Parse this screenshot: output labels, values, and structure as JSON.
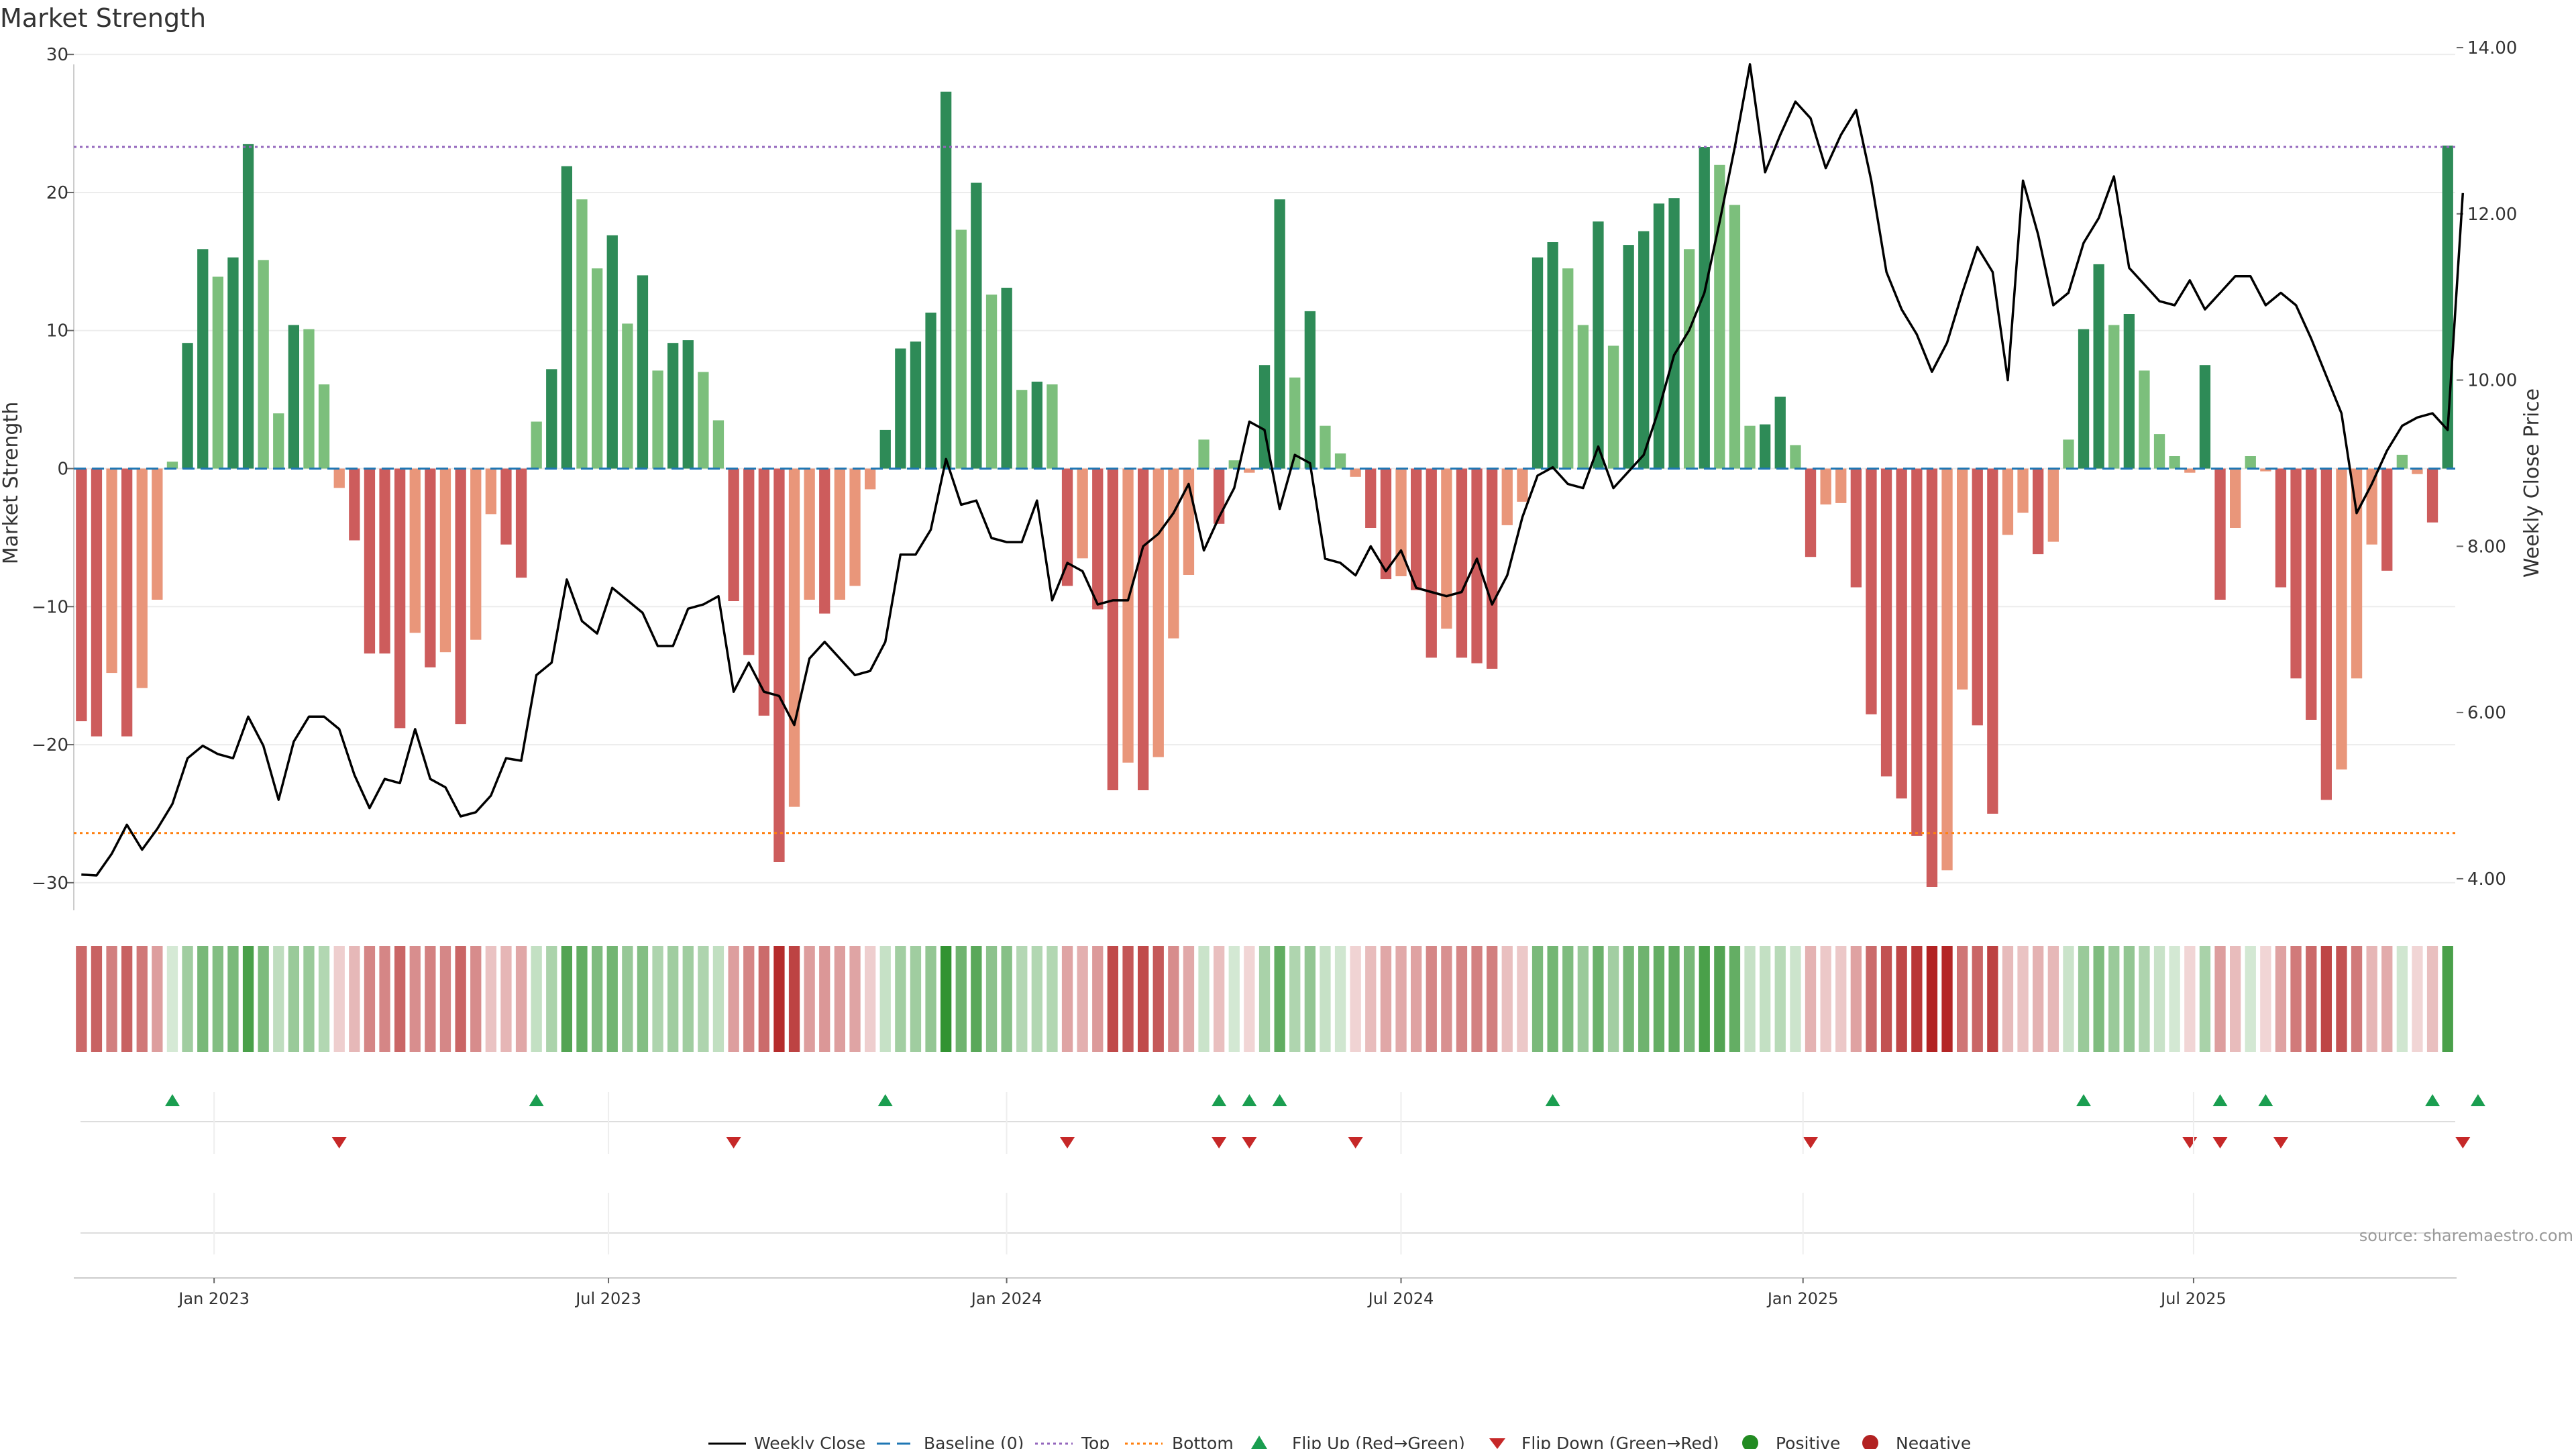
{
  "chart_data": {
    "type": "bar",
    "title": "Market Strength",
    "source": "source: sharemaestro.com",
    "ylabel_left": "Market Strength",
    "ylabel_right": "Weekly Close Price",
    "ylim_left": [
      -32,
      32
    ],
    "yticks_left": [
      {
        "v": 30,
        "label": "30"
      },
      {
        "v": 20,
        "label": "20"
      },
      {
        "v": 10,
        "label": "10"
      },
      {
        "v": 0,
        "label": "0"
      },
      {
        "v": -10,
        "label": "−10"
      },
      {
        "v": -20,
        "label": "−20"
      },
      {
        "v": -30,
        "label": "−30"
      }
    ],
    "ylim_right": [
      3.62,
      14.25
    ],
    "yticks_right": [
      {
        "v": 14,
        "label": "14.00"
      },
      {
        "v": 12,
        "label": "12.00"
      },
      {
        "v": 10,
        "label": "10.00"
      },
      {
        "v": 8,
        "label": "8.00"
      },
      {
        "v": 6,
        "label": "6.00"
      },
      {
        "v": 4,
        "label": "4.00"
      }
    ],
    "x_ticks": [
      {
        "i": 8.75,
        "label": "Jan 2023"
      },
      {
        "i": 34.75,
        "label": "Jul 2023"
      },
      {
        "i": 61,
        "label": "Jan 2024"
      },
      {
        "i": 87,
        "label": "Jul 2024"
      },
      {
        "i": 113.5,
        "label": "Jan 2025"
      },
      {
        "i": 139.25,
        "label": "Jul 2025"
      }
    ],
    "top_line": 23.3,
    "bottom_line": -26.4,
    "colors": {
      "strong_green": "#2e8b57",
      "light_green": "#7cbf7c",
      "strong_red": "#cd5c5c",
      "light_red": "#e9967a",
      "close_line": "#000000",
      "baseline": "#1f77b4",
      "top": "#9467bd",
      "bottom": "#ff7f0e",
      "flip_up": "#1a9e50",
      "flip_down": "#c62828",
      "positive": "#228b22",
      "negative": "#b22222"
    },
    "series": [
      {
        "name": "Market Strength",
        "values": [
          -18.3,
          -19.4,
          -14.8,
          -19.4,
          -15.9,
          -9.5,
          0.5,
          9.1,
          15.9,
          13.9,
          15.3,
          23.5,
          15.1,
          4,
          10.4,
          10.1,
          6.1,
          -1.4,
          -5.2,
          -13.4,
          -13.4,
          -18.8,
          -11.9,
          -14.4,
          -13.3,
          -18.5,
          -12.4,
          -3.3,
          -5.5,
          -7.9,
          3.4,
          7.2,
          21.9,
          19.5,
          14.5,
          16.9,
          10.5,
          14,
          7.1,
          9.1,
          9.3,
          7,
          3.5,
          -9.6,
          -13.5,
          -17.9,
          -28.5,
          -24.5,
          -9.5,
          -10.5,
          -9.5,
          -8.5,
          -1.5,
          2.8,
          8.7,
          9.2,
          11.3,
          27.3,
          17.3,
          20.7,
          12.6,
          13.1,
          5.7,
          6.3,
          6.1,
          -8.5,
          -6.5,
          -10.2,
          -23.3,
          -21.3,
          -23.3,
          -20.9,
          -12.3,
          -7.7,
          2.1,
          -4,
          0.6,
          -0.3,
          7.5,
          19.5,
          6.6,
          11.4,
          3.1,
          1.1,
          -0.6,
          -4.3,
          -8,
          -7.8,
          -8.8,
          -13.7,
          -11.6,
          -13.7,
          -14.1,
          -14.5,
          -4.1,
          -2.4,
          15.3,
          16.4,
          14.5,
          10.4,
          17.9,
          8.9,
          16.2,
          17.2,
          19.2,
          19.6,
          15.9,
          23.3,
          22,
          19.1,
          3.1,
          3.2,
          5.2,
          1.7,
          -6.4,
          -2.6,
          -2.5,
          -8.6,
          -17.8,
          -22.3,
          -23.9,
          -26.6,
          -30.3,
          -29.1,
          -16,
          -18.6,
          -25,
          -4.8,
          -3.2,
          -6.2,
          -5.3,
          2.1,
          10.1,
          14.8,
          10.4,
          11.2,
          7.1,
          2.5,
          0.9,
          -0.3,
          7.5,
          -9.5,
          -4.3,
          0.9,
          -0.2,
          -8.6,
          -15.2,
          -18.2,
          -24,
          -21.8,
          -15.2,
          -5.5,
          -7.4,
          1,
          -0.4,
          -3.9,
          23.4
        ]
      },
      {
        "name": "Weekly Close",
        "values": [
          4.05,
          4.04,
          4.3,
          4.65,
          4.35,
          4.6,
          4.9,
          5.45,
          5.6,
          5.5,
          5.45,
          5.95,
          5.6,
          4.95,
          5.65,
          5.95,
          5.95,
          5.8,
          5.25,
          4.85,
          5.2,
          5.15,
          5.8,
          5.2,
          5.1,
          4.75,
          4.8,
          5,
          5.45,
          5.42,
          6.45,
          6.6,
          7.6,
          7.1,
          6.95,
          7.5,
          7.35,
          7.2,
          6.8,
          6.8,
          7.25,
          7.3,
          7.4,
          6.25,
          6.6,
          6.25,
          6.2,
          5.85,
          6.65,
          6.85,
          6.65,
          6.45,
          6.5,
          6.85,
          7.9,
          7.9,
          8.2,
          9.05,
          8.5,
          8.55,
          8.1,
          8.05,
          8.05,
          8.55,
          7.35,
          7.8,
          7.7,
          7.3,
          7.35,
          7.35,
          8,
          8.15,
          8.4,
          8.75,
          7.95,
          8.35,
          8.7,
          9.5,
          9.4,
          8.45,
          9.1,
          9,
          7.85,
          7.8,
          7.65,
          8,
          7.7,
          7.95,
          7.5,
          7.45,
          7.4,
          7.45,
          7.85,
          7.3,
          7.65,
          8.35,
          8.85,
          8.95,
          8.75,
          8.7,
          9.2,
          8.7,
          8.9,
          9.1,
          9.65,
          10.3,
          10.6,
          11.05,
          11.9,
          12.8,
          13.8,
          12.5,
          12.95,
          13.35,
          13.15,
          12.55,
          12.95,
          13.25,
          12.4,
          11.3,
          10.85,
          10.55,
          10.1,
          10.45,
          11.05,
          11.6,
          11.3,
          10,
          12.4,
          11.75,
          10.9,
          11.05,
          11.65,
          11.95,
          12.45,
          11.35,
          11.15,
          10.95,
          10.9,
          11.2,
          10.85,
          11.05,
          11.25,
          11.25,
          10.9,
          11.05,
          10.9,
          10.5,
          10.05,
          9.6,
          8.4,
          8.75,
          9.15,
          9.45,
          9.55,
          9.6,
          9.4,
          12.25
        ]
      }
    ],
    "flip_up_indices": [
      6,
      30,
      53,
      75,
      77,
      79,
      97,
      132,
      141,
      144,
      155,
      158
    ],
    "flip_down_indices": [
      17,
      43,
      65,
      75,
      77,
      84,
      114,
      139,
      141,
      145,
      157
    ],
    "legend": {
      "close": "Weekly Close",
      "baseline": "Baseline (0)",
      "top": "Top",
      "bottom": "Bottom",
      "flip_up": "Flip Up (Red→Green)",
      "flip_down": "Flip Down (Green→Red)",
      "positive": "Positive",
      "negative": "Negative"
    }
  }
}
